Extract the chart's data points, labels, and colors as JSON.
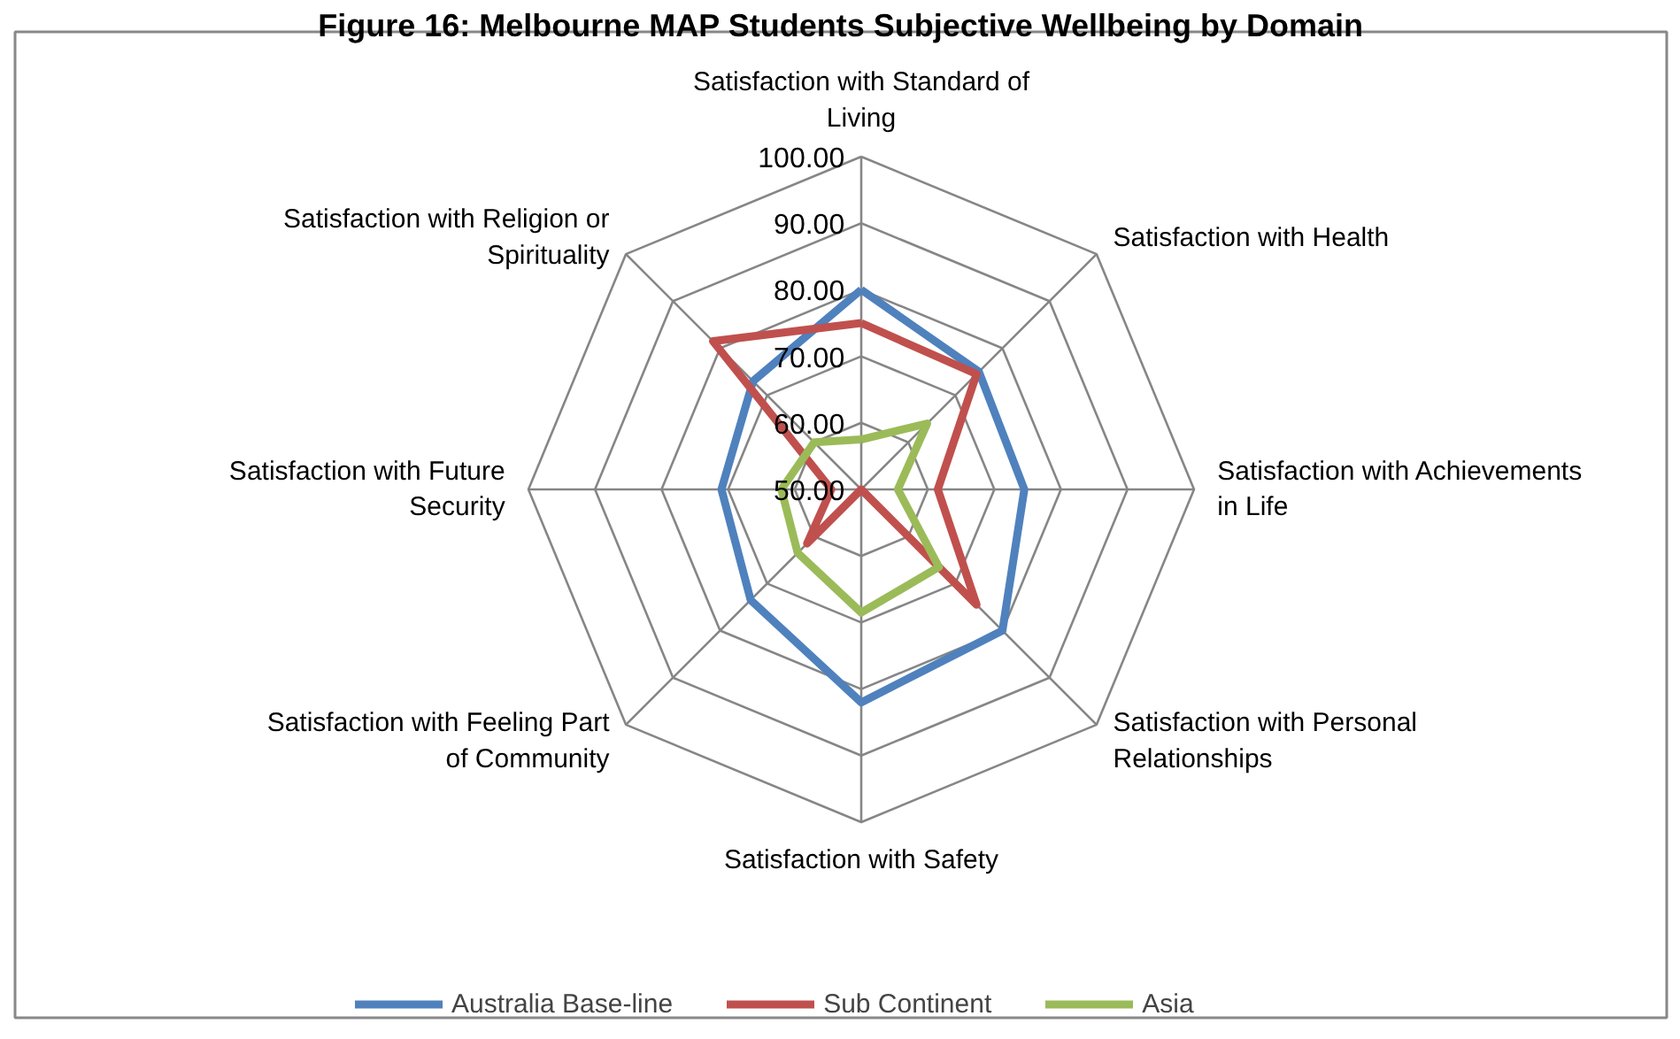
{
  "chart_data": {
    "type": "radar",
    "title": "Figure 16: Melbourne MAP Students Subjective Wellbeing by Domain",
    "categories": [
      "Satisfaction with Standard of Living",
      "Satisfaction with Health",
      "Satisfaction with Achievements in Life",
      "Satisfaction with Personal Relationships",
      "Satisfaction with Safety",
      "Satisfaction with Feeling Part of Community",
      "Satisfaction with Future Security",
      "Satisfaction with Religion or Spirituality"
    ],
    "ylim": [
      50,
      100
    ],
    "yticks": [
      {
        "value": 50,
        "label": "50.00"
      },
      {
        "value": 60,
        "label": "60.00"
      },
      {
        "value": 70,
        "label": "70.00"
      },
      {
        "value": 80,
        "label": "80.00"
      },
      {
        "value": 90,
        "label": "90.00"
      },
      {
        "value": 100,
        "label": "100.00"
      }
    ],
    "legend": "bottom",
    "series": [
      {
        "name": "Australia Base-line",
        "color": "#4f81bd",
        "values": [
          80,
          75,
          74.5,
          80,
          82,
          73.5,
          71,
          73
        ]
      },
      {
        "name": "Sub Continent",
        "color": "#c0504d",
        "values": [
          75,
          74.5,
          61.5,
          74.5,
          50,
          61.5,
          54.5,
          81.5
        ]
      },
      {
        "name": "Asia",
        "color": "#9bbb59",
        "values": [
          57.5,
          64,
          55.5,
          66.5,
          68.5,
          63.5,
          62,
          60
        ]
      }
    ]
  }
}
